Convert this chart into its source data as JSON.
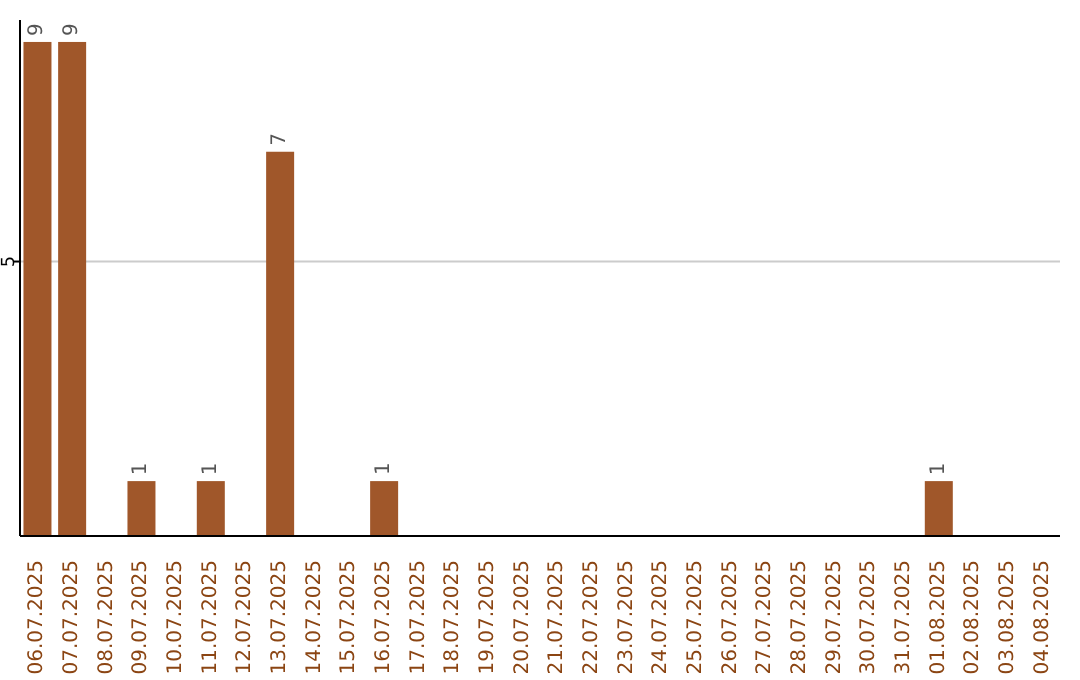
{
  "chart_data": {
    "type": "bar",
    "categories": [
      "06.07.2025",
      "07.07.2025",
      "08.07.2025",
      "09.07.2025",
      "10.07.2025",
      "11.07.2025",
      "12.07.2025",
      "13.07.2025",
      "14.07.2025",
      "15.07.2025",
      "16.07.2025",
      "17.07.2025",
      "18.07.2025",
      "19.07.2025",
      "20.07.2025",
      "21.07.2025",
      "22.07.2025",
      "23.07.2025",
      "24.07.2025",
      "25.07.2025",
      "26.07.2025",
      "27.07.2025",
      "28.07.2025",
      "29.07.2025",
      "30.07.2025",
      "31.07.2025",
      "01.08.2025",
      "02.08.2025",
      "03.08.2025",
      "04.08.2025"
    ],
    "values": [
      9,
      9,
      0,
      1,
      0,
      1,
      0,
      7,
      0,
      0,
      1,
      0,
      0,
      0,
      0,
      0,
      0,
      0,
      0,
      0,
      0,
      0,
      0,
      0,
      0,
      0,
      1,
      0,
      0,
      0
    ],
    "value_labels": [
      "9",
      "9",
      null,
      "1",
      null,
      "1",
      null,
      "7",
      null,
      null,
      "1",
      null,
      null,
      null,
      null,
      null,
      null,
      null,
      null,
      null,
      null,
      null,
      null,
      null,
      null,
      null,
      "1",
      null,
      null,
      null
    ],
    "color": "#a0572a",
    "ylim": [
      0,
      9.4
    ],
    "yticks": [
      5
    ],
    "grid": "y"
  }
}
